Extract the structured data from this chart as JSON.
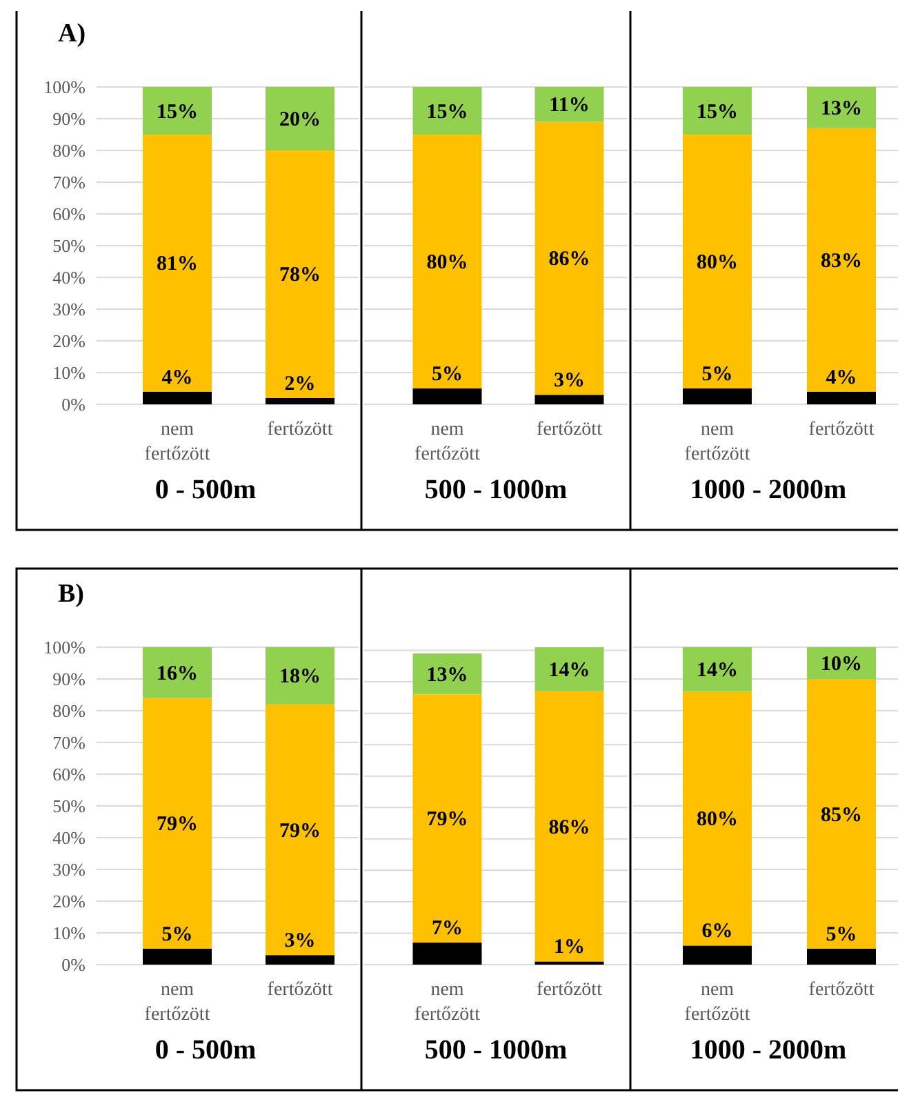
{
  "chart_data": [
    {
      "type": "bar",
      "stacked": true,
      "title": "A)",
      "xlabel": "0 - 500m",
      "categories": [
        "nem fertőzött",
        "fertőzött"
      ],
      "ylim": [
        0,
        100
      ],
      "yticks": [
        {
          "value": 0,
          "label": "0%"
        },
        {
          "value": 10,
          "label": "10%"
        },
        {
          "value": 20,
          "label": "20%"
        },
        {
          "value": 30,
          "label": "30%"
        },
        {
          "value": 40,
          "label": "40%"
        },
        {
          "value": 50,
          "label": "50%"
        },
        {
          "value": 60,
          "label": "60%"
        },
        {
          "value": 70,
          "label": "70%"
        },
        {
          "value": 80,
          "label": "80%"
        },
        {
          "value": 90,
          "label": "90%"
        },
        {
          "value": 100,
          "label": "100%"
        }
      ],
      "grid": "y",
      "series": [
        {
          "color": "#000000",
          "values": [
            4,
            2
          ],
          "value_labels": [
            "4%",
            "2%"
          ]
        },
        {
          "color": "#ffc000",
          "values": [
            81,
            78
          ],
          "value_labels": [
            "81%",
            "78%"
          ]
        },
        {
          "color": "#92d050",
          "values": [
            15,
            20
          ],
          "value_labels": [
            "15%",
            "20%"
          ]
        }
      ]
    },
    {
      "type": "bar",
      "stacked": true,
      "xlabel": "500 - 1000m",
      "categories": [
        "nem fertőzött",
        "fertőzött"
      ],
      "ylim": [
        0,
        100
      ],
      "yticks": [
        0,
        10,
        20,
        30,
        40,
        50,
        60,
        70,
        80,
        90,
        100
      ],
      "tick_labels": "x",
      "grid": "y",
      "series": [
        {
          "color": "#000000",
          "values": [
            5,
            3
          ],
          "value_labels": [
            "5%",
            "3%"
          ]
        },
        {
          "color": "#ffc000",
          "values": [
            80,
            86
          ],
          "value_labels": [
            "80%",
            "86%"
          ]
        },
        {
          "color": "#92d050",
          "values": [
            15,
            11
          ],
          "value_labels": [
            "15%",
            "11%"
          ]
        }
      ]
    },
    {
      "type": "bar",
      "stacked": true,
      "xlabel": "1000 - 2000m",
      "categories": [
        "nem fertőzött",
        "fertőzött"
      ],
      "ylim": [
        0,
        100
      ],
      "yticks": [
        0,
        10,
        20,
        30,
        40,
        50,
        60,
        70,
        80,
        90,
        100
      ],
      "tick_labels": "x",
      "grid": "y",
      "series": [
        {
          "color": "#000000",
          "values": [
            5,
            4
          ],
          "value_labels": [
            "5%",
            "4%"
          ]
        },
        {
          "color": "#ffc000",
          "values": [
            80,
            83
          ],
          "value_labels": [
            "80%",
            "83%"
          ]
        },
        {
          "color": "#92d050",
          "values": [
            15,
            13
          ],
          "value_labels": [
            "15%",
            "13%"
          ]
        }
      ]
    },
    {
      "type": "bar",
      "stacked": true,
      "title": "B)",
      "xlabel": "0 - 500m",
      "categories": [
        "nem fertőzött",
        "fertőzött"
      ],
      "ylim": [
        0,
        100
      ],
      "yticks": [
        {
          "value": 0,
          "label": "0%"
        },
        {
          "value": 10,
          "label": "10%"
        },
        {
          "value": 20,
          "label": "20%"
        },
        {
          "value": 30,
          "label": "30%"
        },
        {
          "value": 40,
          "label": "40%"
        },
        {
          "value": 50,
          "label": "50%"
        },
        {
          "value": 60,
          "label": "60%"
        },
        {
          "value": 70,
          "label": "70%"
        },
        {
          "value": 80,
          "label": "80%"
        },
        {
          "value": 90,
          "label": "90%"
        },
        {
          "value": 100,
          "label": "100%"
        }
      ],
      "grid": "y",
      "series": [
        {
          "color": "#000000",
          "values": [
            5,
            3
          ],
          "value_labels": [
            "5%",
            "3%"
          ]
        },
        {
          "color": "#ffc000",
          "values": [
            79,
            79
          ],
          "value_labels": [
            "79%",
            "79%"
          ]
        },
        {
          "color": "#92d050",
          "values": [
            16,
            18
          ],
          "value_labels": [
            "16%",
            "18%"
          ]
        }
      ]
    },
    {
      "type": "bar",
      "stacked": true,
      "xlabel": "500 - 1000m",
      "categories": [
        "nem fertőzött",
        "fertőzött"
      ],
      "ylim": [
        0,
        101
      ],
      "yticks": [
        0,
        10,
        20,
        30,
        40,
        50,
        60,
        70,
        80,
        90,
        100
      ],
      "tick_labels": "x",
      "grid": "y",
      "series": [
        {
          "color": "#000000",
          "values": [
            7,
            1
          ],
          "value_labels": [
            "7%",
            "1%"
          ]
        },
        {
          "color": "#ffc000",
          "values": [
            79,
            86
          ],
          "value_labels": [
            "79%",
            "86%"
          ]
        },
        {
          "color": "#92d050",
          "values": [
            13,
            14
          ],
          "value_labels": [
            "13%",
            "14%"
          ]
        }
      ]
    },
    {
      "type": "bar",
      "stacked": true,
      "xlabel": "1000 - 2000m",
      "categories": [
        "nem fertőzött",
        "fertőzött"
      ],
      "ylim": [
        0,
        100
      ],
      "yticks": [
        0,
        10,
        20,
        30,
        40,
        50,
        60,
        70,
        80,
        90,
        100
      ],
      "tick_labels": "x",
      "grid": "y",
      "series": [
        {
          "color": "#000000",
          "values": [
            6,
            5
          ],
          "value_labels": [
            "6%",
            "5%"
          ]
        },
        {
          "color": "#ffc000",
          "values": [
            80,
            85
          ],
          "value_labels": [
            "80%",
            "85%"
          ]
        },
        {
          "color": "#92d050",
          "values": [
            14,
            10
          ],
          "value_labels": [
            "14%",
            "10%"
          ]
        }
      ]
    }
  ]
}
